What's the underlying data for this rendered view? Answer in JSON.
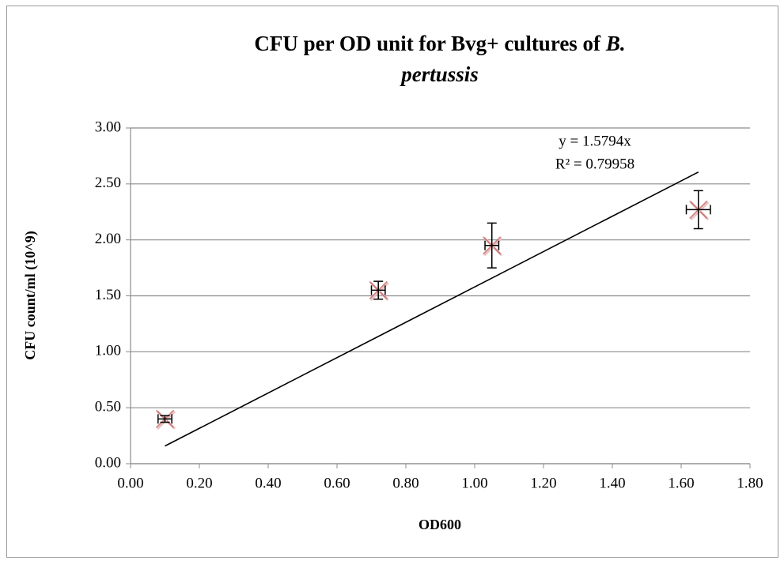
{
  "chart_data": {
    "type": "scatter",
    "title": [
      "CFU per OD unit for Bvg+ cultures of",
      "B.",
      "pertussis"
    ],
    "xlabel": "OD600",
    "ylabel": "CFU count/ml (10^9)",
    "series": [
      {
        "color": "#c0504d",
        "x": [
          0.1,
          0.72,
          1.05,
          1.65
        ],
        "y": [
          0.4,
          1.55,
          1.95,
          2.27
        ],
        "xerr": [
          0.02,
          0.02,
          0.02,
          0.035
        ],
        "yerr": [
          0.03,
          0.08,
          0.2,
          0.17
        ]
      }
    ],
    "trendline": {
      "slope": 1.5794,
      "x": [
        0.1,
        1.65
      ],
      "color": "#000000",
      "annotation": [
        "y = 1.5794x",
        "R² = 0.79958"
      ]
    },
    "xlim": [
      0,
      1.8
    ],
    "ylim": [
      0,
      3
    ],
    "xticks": [
      {
        "value": 0,
        "label": "0.00"
      },
      {
        "value": 0.2,
        "label": "0.20"
      },
      {
        "value": 0.4,
        "label": "0.40"
      },
      {
        "value": 0.6,
        "label": "0.60"
      },
      {
        "value": 0.8,
        "label": "0.80"
      },
      {
        "value": 1.0,
        "label": "1.00"
      },
      {
        "value": 1.2,
        "label": "1.20"
      },
      {
        "value": 1.4,
        "label": "1.40"
      },
      {
        "value": 1.6,
        "label": "1.60"
      },
      {
        "value": 1.8,
        "label": "1.80"
      }
    ],
    "yticks": [
      {
        "value": 0,
        "label": "0.00"
      },
      {
        "value": 0.5,
        "label": "0.50"
      },
      {
        "value": 1.0,
        "label": "1.00"
      },
      {
        "value": 1.5,
        "label": "1.50"
      },
      {
        "value": 2.0,
        "label": "2.00"
      },
      {
        "value": 2.5,
        "label": "2.50"
      },
      {
        "value": 3.0,
        "label": "3.00"
      }
    ],
    "grid": true
  }
}
